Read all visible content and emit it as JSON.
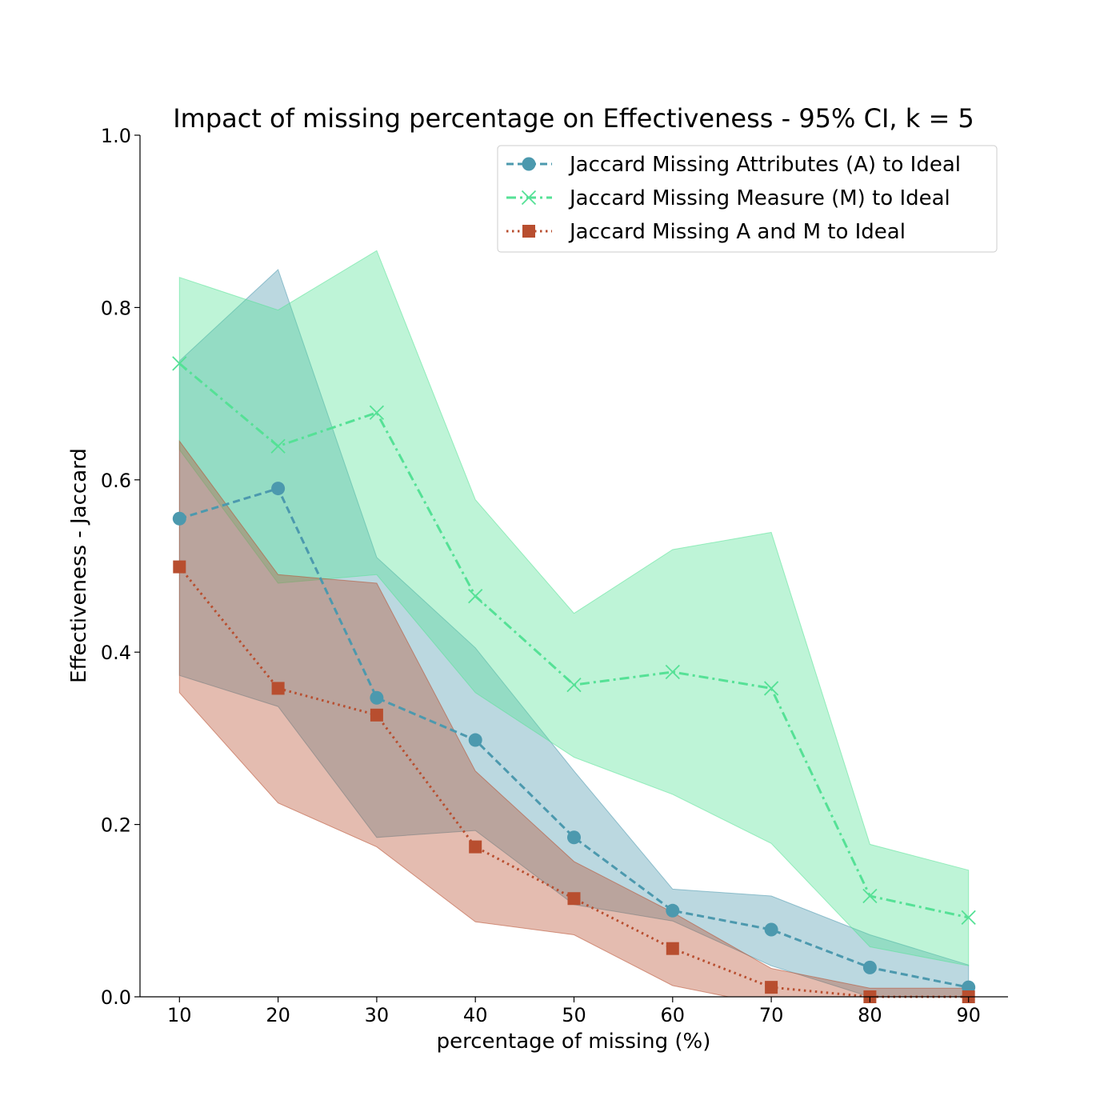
{
  "chart_data": {
    "type": "line",
    "title": "Impact of missing percentage on Effectiveness - 95% CI, k = 5",
    "xlabel": "percentage of missing (%)",
    "ylabel": "Effectiveness - Jaccard",
    "x": [
      10,
      20,
      30,
      40,
      50,
      60,
      70,
      80,
      90
    ],
    "xticks": [
      "10",
      "20",
      "30",
      "40",
      "50",
      "60",
      "70",
      "80",
      "90"
    ],
    "yticks": [
      "0.0",
      "0.2",
      "0.4",
      "0.6",
      "0.8",
      "1.0"
    ],
    "xlim": [
      6,
      94
    ],
    "ylim": [
      0,
      1.0
    ],
    "grid": false,
    "legend_position": "top-right",
    "series": [
      {
        "name": "Jaccard Missing Attributes (A) to Ideal",
        "color": "#4c99ae",
        "marker": "circle",
        "linestyle": "dashed",
        "values": [
          0.555,
          0.59,
          0.347,
          0.298,
          0.185,
          0.1,
          0.078,
          0.034,
          0.011
        ],
        "ci_lower": [
          0.373,
          0.337,
          0.185,
          0.193,
          0.107,
          0.088,
          0.036,
          0.0,
          0.0
        ],
        "ci_upper": [
          0.738,
          0.844,
          0.51,
          0.405,
          0.262,
          0.125,
          0.117,
          0.072,
          0.037
        ]
      },
      {
        "name": "Jaccard Missing Measure (M) to Ideal",
        "color": "#55e196",
        "marker": "x",
        "linestyle": "dashdot",
        "values": [
          0.735,
          0.639,
          0.678,
          0.465,
          0.362,
          0.377,
          0.358,
          0.117,
          0.092
        ],
        "ci_lower": [
          0.635,
          0.48,
          0.49,
          0.353,
          0.278,
          0.235,
          0.178,
          0.058,
          0.036
        ],
        "ci_upper": [
          0.835,
          0.797,
          0.866,
          0.577,
          0.445,
          0.519,
          0.539,
          0.177,
          0.147
        ]
      },
      {
        "name": "Jaccard Missing A and M to Ideal",
        "color": "#b84e2f",
        "marker": "square",
        "linestyle": "dotted",
        "values": [
          0.499,
          0.358,
          0.327,
          0.174,
          0.114,
          0.056,
          0.011,
          0.0,
          0.0
        ],
        "ci_lower": [
          0.353,
          0.225,
          0.174,
          0.087,
          0.072,
          0.013,
          -0.01,
          -0.02,
          -0.02
        ],
        "ci_upper": [
          0.645,
          0.49,
          0.48,
          0.262,
          0.157,
          0.098,
          0.033,
          0.01,
          0.01
        ]
      }
    ]
  }
}
